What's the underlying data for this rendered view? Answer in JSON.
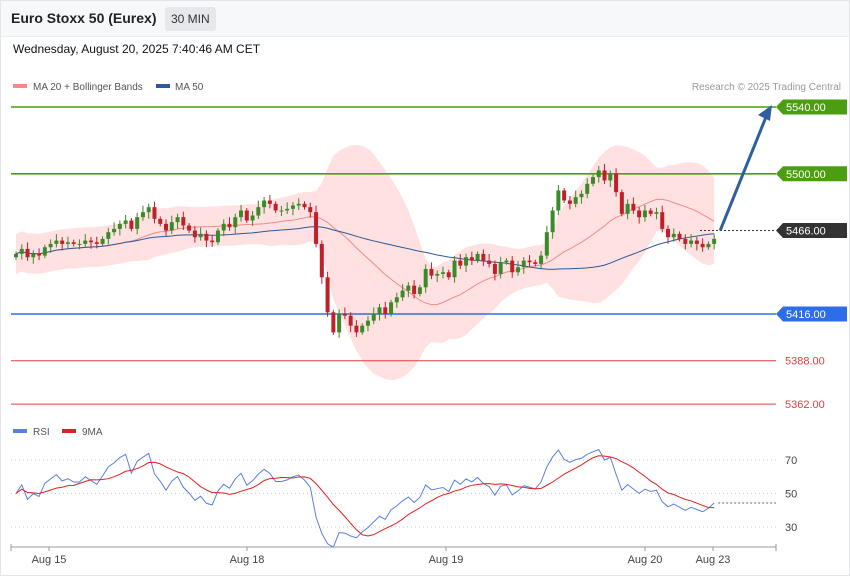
{
  "header": {
    "title": "Euro Stoxx 50 (Eurex)",
    "timeframe": "30 MIN"
  },
  "datetime": "Wednesday, August 20, 2025 7:40:46 AM CET",
  "credit": "Research © 2025 Trading Central",
  "legend": {
    "ma20": {
      "label": "MA 20 + Bollinger Bands",
      "color": "#f28a8a"
    },
    "ma50": {
      "label": "MA 50",
      "color": "#2c5a9a"
    },
    "rsi": {
      "label": "RSI",
      "color": "#5b7fe0"
    },
    "rsi_ma": {
      "label": "9MA",
      "color": "#e02020"
    }
  },
  "chart_data": {
    "type": "candlestick",
    "price_ylim": [
      5300,
      5555
    ],
    "rsi_ylim": [
      15,
      85
    ],
    "x_labels": [
      "Aug 15",
      "Aug 18",
      "Aug 19",
      "Aug 20",
      "Aug 23"
    ],
    "levels": [
      {
        "value": 5540.0,
        "label": "5540.00",
        "color": "#4a9e10",
        "boxed": true
      },
      {
        "value": 5500.0,
        "label": "5500.00",
        "color": "#4a9e10",
        "boxed": true
      },
      {
        "value": 5466.0,
        "label": "5466.00",
        "color": "#333333",
        "boxed": true
      },
      {
        "value": 5416.0,
        "label": "5416.00",
        "color": "#2e6de8",
        "boxed": true
      },
      {
        "value": 5388.0,
        "label": "5388.00",
        "color": "#e04040",
        "boxed": false
      },
      {
        "value": 5362.0,
        "label": "5362.00",
        "color": "#e04040",
        "boxed": false
      }
    ],
    "rsi_levels": [
      70,
      50,
      30
    ],
    "projection": {
      "from": 5466,
      "to": 5540,
      "color": "#2f5f9e"
    },
    "bull_color": "#3a8a2a",
    "bear_color": "#c0202a",
    "close": [
      5452,
      5455,
      5450,
      5452,
      5451,
      5456,
      5458,
      5460,
      5458,
      5459,
      5458,
      5458,
      5460,
      5459,
      5458,
      5461,
      5465,
      5467,
      5470,
      5472,
      5467,
      5474,
      5477,
      5480,
      5473,
      5470,
      5466,
      5471,
      5474,
      5469,
      5466,
      5462,
      5464,
      5460,
      5459,
      5466,
      5470,
      5468,
      5474,
      5478,
      5472,
      5475,
      5480,
      5484,
      5482,
      5478,
      5478,
      5479,
      5481,
      5482,
      5480,
      5477,
      5458,
      5438,
      5417,
      5405,
      5416,
      5415,
      5409,
      5405,
      5409,
      5412,
      5416,
      5420,
      5416,
      5423,
      5426,
      5430,
      5433,
      5428,
      5432,
      5443,
      5439,
      5440,
      5441,
      5438,
      5448,
      5445,
      5450,
      5448,
      5452,
      5448,
      5446,
      5440,
      5447,
      5448,
      5441,
      5444,
      5448,
      5447,
      5446,
      5451,
      5465,
      5478,
      5490,
      5484,
      5482,
      5486,
      5488,
      5494,
      5498,
      5502,
      5496,
      5500,
      5489,
      5476,
      5482,
      5478,
      5474,
      5478,
      5476,
      5477,
      5467,
      5462,
      5464,
      5461,
      5458,
      5460,
      5458,
      5456,
      5458,
      5461
    ]
  },
  "ui_colors": {
    "boxed_label_text": "#ffffff",
    "grid": "#c8c8c8",
    "ma20_band_fill": "#ffd9d9"
  }
}
